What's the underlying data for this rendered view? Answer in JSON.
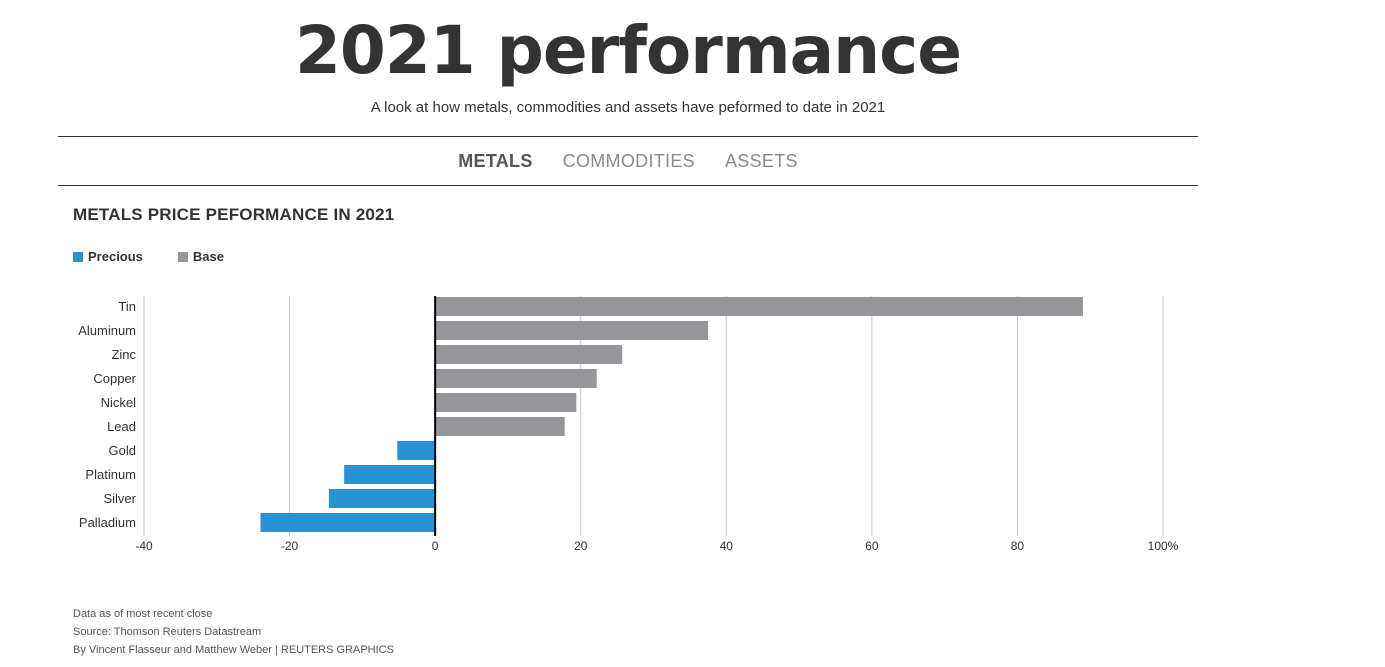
{
  "header": {
    "title": "2021 performance",
    "subtitle": "A look at how metals, commodities and assets have peformed to date in 2021"
  },
  "tabs": [
    {
      "label": "METALS",
      "active": true
    },
    {
      "label": "COMMODITIES",
      "active": false
    },
    {
      "label": "ASSETS",
      "active": false
    }
  ],
  "legend": {
    "precious_label": "Precious",
    "base_label": "Base",
    "precious_color": "#2a91d3",
    "base_color": "#96969a"
  },
  "footer": {
    "line1": "Data as of most recent close",
    "line2": "Source: Thomson Reuters Datastream",
    "line3": "By Vincent Flasseur and Matthew Weber | REUTERS GRAPHICS"
  },
  "chart_data": {
    "type": "bar",
    "orientation": "horizontal",
    "title": "METALS PRICE PEFORMANCE IN 2021",
    "categories": [
      "Tin",
      "Aluminum",
      "Zinc",
      "Copper",
      "Nickel",
      "Lead",
      "Gold",
      "Platinum",
      "Silver",
      "Palladium"
    ],
    "groups": [
      "Base",
      "Base",
      "Base",
      "Base",
      "Base",
      "Base",
      "Precious",
      "Precious",
      "Precious",
      "Precious"
    ],
    "values": [
      89,
      37.5,
      25.7,
      22.2,
      19.4,
      17.8,
      -5.2,
      -12.5,
      -14.6,
      -24
    ],
    "xlim": [
      -40,
      100
    ],
    "xticks": [
      -40,
      -20,
      0,
      20,
      40,
      60,
      80,
      100
    ],
    "xtick_labels": [
      "-40",
      "-20",
      "0",
      "20",
      "40",
      "60",
      "80",
      "100%"
    ],
    "grid": true
  }
}
